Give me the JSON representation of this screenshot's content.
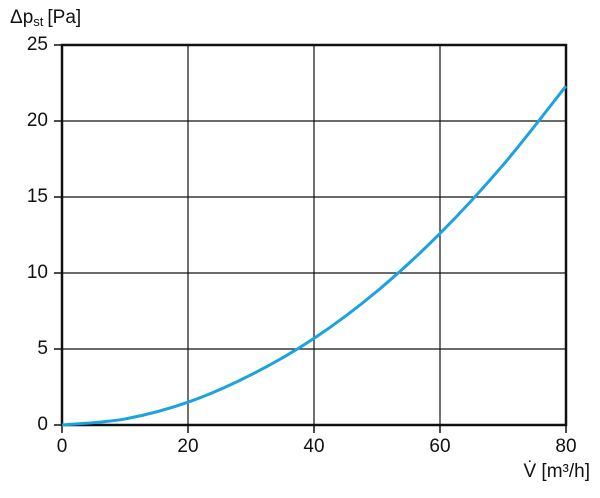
{
  "chart_data": {
    "type": "line",
    "y_label": [
      "Δp",
      "st",
      "[Pa]"
    ],
    "x_label": "V̇ [m³/h]",
    "x": [
      0,
      10,
      20,
      30,
      40,
      50,
      60,
      70,
      80
    ],
    "series": [
      {
        "color": "#1aa3de",
        "values": [
          0,
          0.4,
          1.5,
          3.3,
          5.7,
          8.8,
          12.6,
          17.1,
          22.3
        ]
      }
    ],
    "xlim": [
      0,
      80
    ],
    "xticks": [
      0,
      20,
      40,
      60,
      80
    ],
    "ylim": [
      0,
      25
    ],
    "yticks": [
      0,
      5,
      10,
      15,
      20,
      25
    ],
    "grid": true
  }
}
